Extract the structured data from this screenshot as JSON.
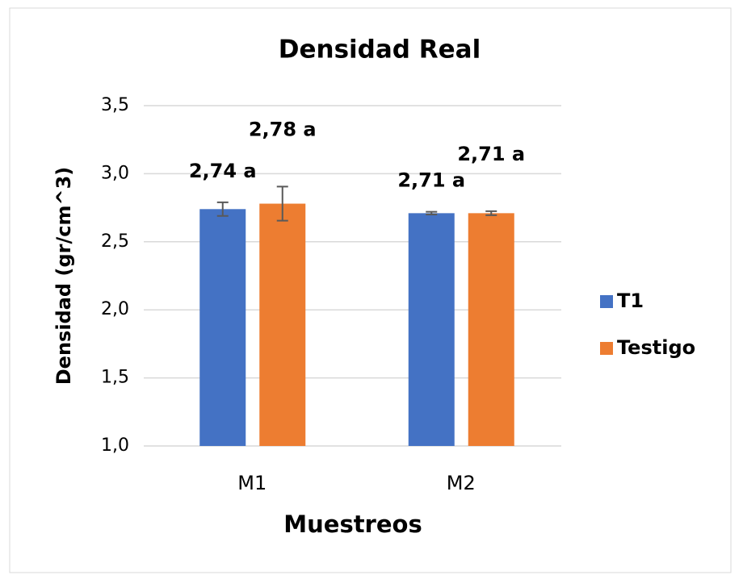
{
  "chart_data": {
    "type": "bar",
    "title": "Densidad Real",
    "x_label": "Muestreos",
    "y_label": "Densidad (gr/cm^3)",
    "categories": [
      "M1",
      "M2"
    ],
    "series": [
      {
        "name": "T1",
        "color": "#4472c4",
        "values": [
          2.74,
          2.71
        ],
        "errors": [
          0.05,
          0.01
        ],
        "value_labels": [
          "2,74 a",
          "2,71 a"
        ]
      },
      {
        "name": "Testigo",
        "color": "#ed7d31",
        "values": [
          2.78,
          2.71
        ],
        "errors": [
          0.125,
          0.015
        ],
        "value_labels": [
          "2,78 a",
          "2,71 a"
        ]
      }
    ],
    "ylim": [
      1.0,
      3.5
    ],
    "yticks": [
      {
        "value": 1.0,
        "label": "1,0"
      },
      {
        "value": 1.5,
        "label": "1,5"
      },
      {
        "value": 2.0,
        "label": "2,0"
      },
      {
        "value": 2.5,
        "label": "2,5"
      },
      {
        "value": 3.0,
        "label": "3,0"
      },
      {
        "value": 3.5,
        "label": "3,5"
      }
    ],
    "grid": true,
    "legend": "right"
  }
}
